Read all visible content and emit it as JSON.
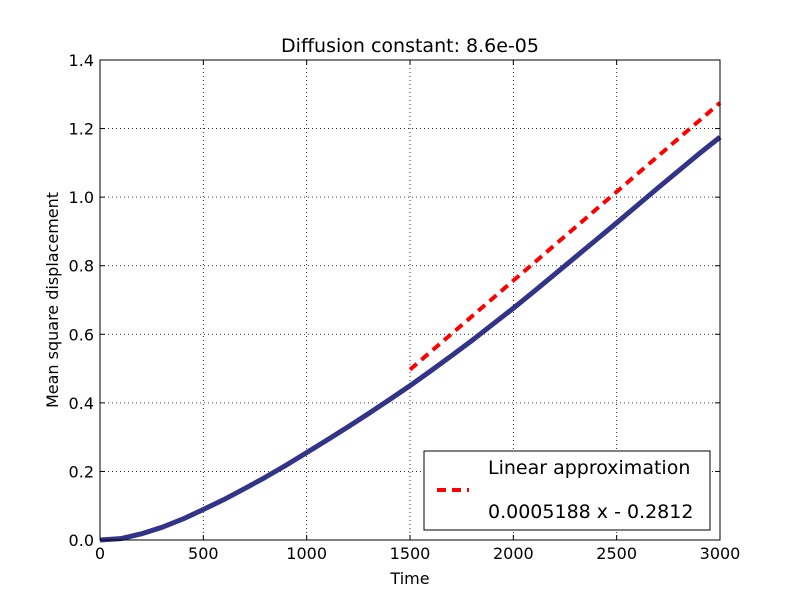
{
  "chart_data": {
    "type": "line",
    "title": "Diffusion constant: 8.6e-05",
    "xlabel": "Time",
    "ylabel": "Mean square displacement",
    "xlim": [
      0,
      3000
    ],
    "ylim": [
      0,
      1.4
    ],
    "xticks": [
      0,
      500,
      1000,
      1500,
      2000,
      2500,
      3000
    ],
    "yticks": [
      0.0,
      0.2,
      0.4,
      0.6,
      0.8,
      1.0,
      1.2,
      1.4
    ],
    "xtick_labels": [
      "0",
      "500",
      "1000",
      "1500",
      "2000",
      "2500",
      "3000"
    ],
    "ytick_labels": [
      "0.0",
      "0.2",
      "0.4",
      "0.6",
      "0.8",
      "1.0",
      "1.2",
      "1.4"
    ],
    "grid": true,
    "legend_position": "lower-right",
    "series": [
      {
        "style": "solid",
        "color": "#333388",
        "x": [
          0,
          100,
          200,
          300,
          400,
          500,
          600,
          700,
          800,
          900,
          1000,
          1100,
          1200,
          1300,
          1400,
          1500,
          1600,
          1700,
          1800,
          1900,
          2000,
          2100,
          2200,
          2300,
          2400,
          2500,
          2600,
          2700,
          2800,
          2900,
          3000
        ],
        "y": [
          0.0,
          0.004,
          0.018,
          0.037,
          0.061,
          0.089,
          0.118,
          0.15,
          0.183,
          0.218,
          0.255,
          0.292,
          0.33,
          0.369,
          0.409,
          0.45,
          0.493,
          0.537,
          0.582,
          0.629,
          0.676,
          0.725,
          0.775,
          0.825,
          0.875,
          0.925,
          0.976,
          1.027,
          1.077,
          1.127,
          1.175
        ]
      },
      {
        "name": "Linear approximation\n0.0005188 x - 0.2812",
        "style": "dashed",
        "color": "#ff0000",
        "x": [
          1500,
          3000
        ],
        "y": [
          0.497,
          1.2752
        ]
      }
    ],
    "legend": {
      "line1": "Linear approximation",
      "line2": "0.0005188 x - 0.2812"
    }
  }
}
